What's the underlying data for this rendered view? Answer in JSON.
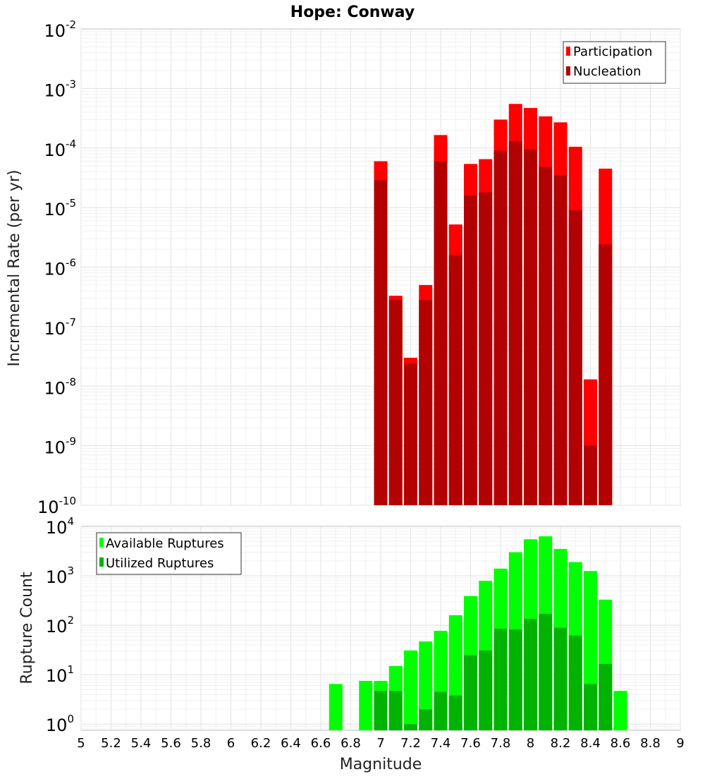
{
  "title": "Hope: Conway",
  "chart_data": [
    {
      "type": "bar",
      "ylabel": "Incremental Rate (per yr)",
      "yscale": "log",
      "ylim": [
        1e-10,
        0.01
      ],
      "xlim": [
        5,
        9
      ],
      "y_tick_labels": [
        {
          "base": "10",
          "exp": "-10"
        },
        {
          "base": "10",
          "exp": "-9"
        },
        {
          "base": "10",
          "exp": "-8"
        },
        {
          "base": "10",
          "exp": "-7"
        },
        {
          "base": "10",
          "exp": "-6"
        },
        {
          "base": "10",
          "exp": "-5"
        },
        {
          "base": "10",
          "exp": "-4"
        },
        {
          "base": "10",
          "exp": "-3"
        },
        {
          "base": "10",
          "exp": "-2"
        }
      ],
      "legend_position": "top-right",
      "grid": true,
      "x": [
        7.0,
        7.1,
        7.2,
        7.3,
        7.4,
        7.5,
        7.6,
        7.7,
        7.8,
        7.9,
        8.0,
        8.1,
        8.2,
        8.3,
        8.4,
        8.5
      ],
      "series": [
        {
          "name": "Participation",
          "color": "#ff0000",
          "values": [
            6e-05,
            3.3e-07,
            3e-08,
            5e-07,
            0.000165,
            5.2e-06,
            5.4e-05,
            6.5e-05,
            0.0003,
            0.00055,
            0.00047,
            0.00034,
            0.00027,
            0.000105,
            1.3e-08,
            4.5e-05
          ]
        },
        {
          "name": "Nucleation",
          "color": "#b30000",
          "values": [
            2.9e-05,
            2.8e-07,
            2.4e-08,
            2.8e-07,
            6e-05,
            1.6e-06,
            1.6e-05,
            1.8e-05,
            9e-05,
            0.00013,
            9.5e-05,
            4.8e-05,
            3.5e-05,
            9e-06,
            1e-09,
            2.4e-06
          ]
        }
      ]
    },
    {
      "type": "bar",
      "ylabel": "Rupture Count",
      "xlabel": "Magnitude",
      "yscale": "log",
      "ylim": [
        0.75,
        10000
      ],
      "xlim": [
        5,
        9
      ],
      "x_ticks": [
        "5",
        "5.2",
        "5.4",
        "5.6",
        "5.8",
        "6",
        "6.2",
        "6.4",
        "6.6",
        "6.8",
        "7",
        "7.2",
        "7.4",
        "7.6",
        "7.8",
        "8",
        "8.2",
        "8.4",
        "8.6",
        "8.8",
        "9"
      ],
      "y_tick_labels": [
        {
          "base": "10",
          "exp": "0"
        },
        {
          "base": "10",
          "exp": "1"
        },
        {
          "base": "10",
          "exp": "2"
        },
        {
          "base": "10",
          "exp": "3"
        },
        {
          "base": "10",
          "exp": "4"
        }
      ],
      "legend_position": "top-left",
      "grid": true,
      "series": [
        {
          "name": "Available Ruptures",
          "color": "#00ff00",
          "x": [
            6.7,
            6.9,
            7.0,
            7.1,
            7.2,
            7.3,
            7.4,
            7.5,
            7.6,
            7.7,
            7.8,
            7.9,
            8.0,
            8.1,
            8.2,
            8.3,
            8.4,
            8.5,
            8.6
          ],
          "values": [
            6.5,
            7.5,
            7.5,
            15,
            31,
            47,
            77,
            160,
            390,
            790,
            1400,
            3000,
            5500,
            6300,
            3500,
            1900,
            1250,
            330,
            4.7
          ]
        },
        {
          "name": "Utilized Ruptures",
          "color": "#00b300",
          "x": [
            7.0,
            7.1,
            7.2,
            7.3,
            7.4,
            7.5,
            7.6,
            7.7,
            7.8,
            7.9,
            8.0,
            8.1,
            8.2,
            8.3,
            8.4,
            8.5
          ],
          "values": [
            4.7,
            4.7,
            1.0,
            2.0,
            4.5,
            3.8,
            25,
            31,
            85,
            82,
            135,
            170,
            89,
            62,
            6.5,
            16.5
          ]
        }
      ]
    }
  ]
}
